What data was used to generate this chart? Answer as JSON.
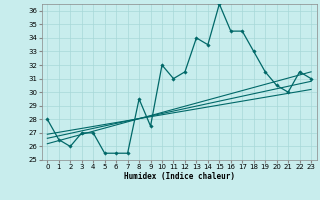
{
  "xlabel": "Humidex (Indice chaleur)",
  "ylabel": "",
  "xlim": [
    -0.5,
    23.5
  ],
  "ylim": [
    25,
    36.5
  ],
  "yticks": [
    25,
    26,
    27,
    28,
    29,
    30,
    31,
    32,
    33,
    34,
    35,
    36
  ],
  "xticks": [
    0,
    1,
    2,
    3,
    4,
    5,
    6,
    7,
    8,
    9,
    10,
    11,
    12,
    13,
    14,
    15,
    16,
    17,
    18,
    19,
    20,
    21,
    22,
    23
  ],
  "bg_color": "#c8eded",
  "grid_color": "#a8d8d8",
  "line_color": "#006868",
  "main_x": [
    0,
    1,
    2,
    3,
    4,
    5,
    6,
    7,
    8,
    9,
    10,
    11,
    12,
    13,
    14,
    15,
    16,
    17,
    18,
    19,
    20,
    21,
    22,
    23
  ],
  "main_y": [
    28.0,
    26.5,
    26.0,
    27.0,
    27.0,
    25.5,
    25.5,
    25.5,
    29.5,
    27.5,
    32.0,
    31.0,
    31.5,
    34.0,
    33.5,
    36.5,
    34.5,
    34.5,
    33.0,
    31.5,
    30.5,
    30.0,
    31.5,
    31.0
  ],
  "reg_lines": [
    {
      "x": [
        0,
        23
      ],
      "y": [
        26.2,
        31.5
      ]
    },
    {
      "x": [
        0,
        23
      ],
      "y": [
        26.6,
        30.8
      ]
    },
    {
      "x": [
        0,
        23
      ],
      "y": [
        26.9,
        30.2
      ]
    }
  ]
}
